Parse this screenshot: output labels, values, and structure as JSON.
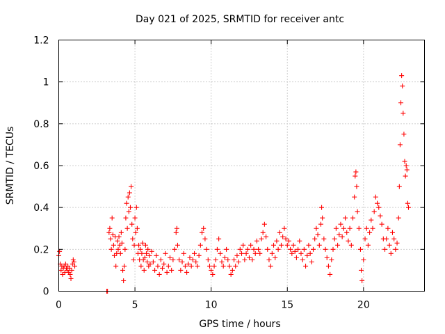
{
  "chart_data": {
    "type": "scatter",
    "title": "Day 021 of 2025, SRMTID for receiver antc",
    "xlabel": "GPS time / hours",
    "ylabel": "SRMTID / TECUs",
    "xlim": [
      0,
      24
    ],
    "ylim": [
      0,
      1.2
    ],
    "xticks": [
      0,
      5,
      10,
      15,
      20
    ],
    "xtick_labels": [
      "0",
      "5",
      "10",
      "15",
      "20"
    ],
    "yticks": [
      0,
      0.2,
      0.4,
      0.6,
      0.8,
      1.0,
      1.2
    ],
    "ytick_labels": [
      "0",
      "0.2",
      "0.4",
      "0.6",
      "0.8",
      "1",
      "1.2"
    ],
    "grid": true,
    "marker": "+",
    "colors": {
      "points": "#ff0000",
      "grid": "#a0a0a0",
      "axis": "#000000"
    },
    "series": [
      {
        "name": "SRMTID",
        "points": [
          [
            0.0,
            0.17
          ],
          [
            0.05,
            0.19
          ],
          [
            0.1,
            0.13
          ],
          [
            0.15,
            0.1
          ],
          [
            0.2,
            0.12
          ],
          [
            0.25,
            0.08
          ],
          [
            0.3,
            0.11
          ],
          [
            0.35,
            0.12
          ],
          [
            0.4,
            0.09
          ],
          [
            0.45,
            0.13
          ],
          [
            0.5,
            0.11
          ],
          [
            0.55,
            0.1
          ],
          [
            0.6,
            0.12
          ],
          [
            0.65,
            0.09
          ],
          [
            0.7,
            0.11
          ],
          [
            0.75,
            0.08
          ],
          [
            0.8,
            0.06
          ],
          [
            0.85,
            0.1
          ],
          [
            0.9,
            0.13
          ],
          [
            0.95,
            0.15
          ],
          [
            1.0,
            0.14
          ],
          [
            1.05,
            0.12
          ],
          [
            3.15,
            0.0
          ],
          [
            3.2,
            0.0
          ],
          [
            3.3,
            0.28
          ],
          [
            3.35,
            0.3
          ],
          [
            3.4,
            0.25
          ],
          [
            3.45,
            0.2
          ],
          [
            3.5,
            0.35
          ],
          [
            3.55,
            0.27
          ],
          [
            3.6,
            0.22
          ],
          [
            3.65,
            0.17
          ],
          [
            3.7,
            0.26
          ],
          [
            3.75,
            0.12
          ],
          [
            3.8,
            0.18
          ],
          [
            3.85,
            0.24
          ],
          [
            3.9,
            0.2
          ],
          [
            3.95,
            0.26
          ],
          [
            4.0,
            0.22
          ],
          [
            4.05,
            0.18
          ],
          [
            4.1,
            0.28
          ],
          [
            4.15,
            0.23
          ],
          [
            4.2,
            0.1
          ],
          [
            4.25,
            0.05
          ],
          [
            4.3,
            0.12
          ],
          [
            4.35,
            0.2
          ],
          [
            4.4,
            0.35
          ],
          [
            4.45,
            0.42
          ],
          [
            4.5,
            0.3
          ],
          [
            4.55,
            0.45
          ],
          [
            4.6,
            0.38
          ],
          [
            4.65,
            0.47
          ],
          [
            4.7,
            0.4
          ],
          [
            4.75,
            0.5
          ],
          [
            4.8,
            0.32
          ],
          [
            4.85,
            0.25
          ],
          [
            4.9,
            0.15
          ],
          [
            4.95,
            0.22
          ],
          [
            5.0,
            0.35
          ],
          [
            5.05,
            0.28
          ],
          [
            5.1,
            0.4
          ],
          [
            5.15,
            0.3
          ],
          [
            5.2,
            0.18
          ],
          [
            5.25,
            0.22
          ],
          [
            5.3,
            0.15
          ],
          [
            5.35,
            0.2
          ],
          [
            5.4,
            0.12
          ],
          [
            5.45,
            0.18
          ],
          [
            5.5,
            0.23
          ],
          [
            5.55,
            0.15
          ],
          [
            5.6,
            0.1
          ],
          [
            5.65,
            0.16
          ],
          [
            5.7,
            0.22
          ],
          [
            5.75,
            0.18
          ],
          [
            5.8,
            0.14
          ],
          [
            5.85,
            0.2
          ],
          [
            5.9,
            0.12
          ],
          [
            5.95,
            0.17
          ],
          [
            6.0,
            0.13
          ],
          [
            6.1,
            0.19
          ],
          [
            6.2,
            0.14
          ],
          [
            6.3,
            0.1
          ],
          [
            6.4,
            0.17
          ],
          [
            6.5,
            0.12
          ],
          [
            6.6,
            0.08
          ],
          [
            6.7,
            0.15
          ],
          [
            6.8,
            0.11
          ],
          [
            6.9,
            0.13
          ],
          [
            7.0,
            0.18
          ],
          [
            7.1,
            0.09
          ],
          [
            7.2,
            0.12
          ],
          [
            7.3,
            0.16
          ],
          [
            7.4,
            0.1
          ],
          [
            7.5,
            0.15
          ],
          [
            7.6,
            0.2
          ],
          [
            7.7,
            0.28
          ],
          [
            7.75,
            0.3
          ],
          [
            7.8,
            0.22
          ],
          [
            7.9,
            0.15
          ],
          [
            8.0,
            0.1
          ],
          [
            8.1,
            0.14
          ],
          [
            8.2,
            0.18
          ],
          [
            8.3,
            0.12
          ],
          [
            8.4,
            0.09
          ],
          [
            8.5,
            0.13
          ],
          [
            8.6,
            0.16
          ],
          [
            8.7,
            0.12
          ],
          [
            8.8,
            0.15
          ],
          [
            8.9,
            0.18
          ],
          [
            9.0,
            0.14
          ],
          [
            9.1,
            0.12
          ],
          [
            9.2,
            0.17
          ],
          [
            9.3,
            0.22
          ],
          [
            9.4,
            0.28
          ],
          [
            9.5,
            0.3
          ],
          [
            9.6,
            0.25
          ],
          [
            9.7,
            0.2
          ],
          [
            9.8,
            0.15
          ],
          [
            9.9,
            0.12
          ],
          [
            10.0,
            0.1
          ],
          [
            10.1,
            0.08
          ],
          [
            10.2,
            0.12
          ],
          [
            10.3,
            0.15
          ],
          [
            10.4,
            0.2
          ],
          [
            10.5,
            0.25
          ],
          [
            10.6,
            0.18
          ],
          [
            10.7,
            0.14
          ],
          [
            10.8,
            0.12
          ],
          [
            10.9,
            0.16
          ],
          [
            11.0,
            0.2
          ],
          [
            11.1,
            0.15
          ],
          [
            11.2,
            0.12
          ],
          [
            11.3,
            0.08
          ],
          [
            11.4,
            0.1
          ],
          [
            11.5,
            0.15
          ],
          [
            11.6,
            0.12
          ],
          [
            11.7,
            0.17
          ],
          [
            11.8,
            0.14
          ],
          [
            11.9,
            0.2
          ],
          [
            12.0,
            0.18
          ],
          [
            12.1,
            0.22
          ],
          [
            12.2,
            0.15
          ],
          [
            12.3,
            0.18
          ],
          [
            12.4,
            0.2
          ],
          [
            12.5,
            0.16
          ],
          [
            12.6,
            0.22
          ],
          [
            12.7,
            0.15
          ],
          [
            12.8,
            0.2
          ],
          [
            12.9,
            0.18
          ],
          [
            13.0,
            0.24
          ],
          [
            13.1,
            0.2
          ],
          [
            13.2,
            0.18
          ],
          [
            13.3,
            0.25
          ],
          [
            13.4,
            0.28
          ],
          [
            13.5,
            0.32
          ],
          [
            13.6,
            0.26
          ],
          [
            13.7,
            0.2
          ],
          [
            13.8,
            0.15
          ],
          [
            13.9,
            0.12
          ],
          [
            14.0,
            0.18
          ],
          [
            14.1,
            0.22
          ],
          [
            14.2,
            0.16
          ],
          [
            14.3,
            0.24
          ],
          [
            14.4,
            0.2
          ],
          [
            14.5,
            0.28
          ],
          [
            14.6,
            0.22
          ],
          [
            14.7,
            0.26
          ],
          [
            14.8,
            0.3
          ],
          [
            14.9,
            0.25
          ],
          [
            15.0,
            0.22
          ],
          [
            15.1,
            0.24
          ],
          [
            15.2,
            0.2
          ],
          [
            15.3,
            0.18
          ],
          [
            15.4,
            0.22
          ],
          [
            15.5,
            0.19
          ],
          [
            15.6,
            0.16
          ],
          [
            15.7,
            0.2
          ],
          [
            15.8,
            0.24
          ],
          [
            15.9,
            0.18
          ],
          [
            16.0,
            0.15
          ],
          [
            16.1,
            0.2
          ],
          [
            16.2,
            0.12
          ],
          [
            16.3,
            0.17
          ],
          [
            16.4,
            0.22
          ],
          [
            16.5,
            0.18
          ],
          [
            16.6,
            0.14
          ],
          [
            16.7,
            0.2
          ],
          [
            16.8,
            0.25
          ],
          [
            16.9,
            0.3
          ],
          [
            17.0,
            0.27
          ],
          [
            17.1,
            0.22
          ],
          [
            17.2,
            0.32
          ],
          [
            17.25,
            0.4
          ],
          [
            17.3,
            0.35
          ],
          [
            17.4,
            0.25
          ],
          [
            17.5,
            0.2
          ],
          [
            17.6,
            0.16
          ],
          [
            17.7,
            0.12
          ],
          [
            17.8,
            0.08
          ],
          [
            17.9,
            0.15
          ],
          [
            18.0,
            0.2
          ],
          [
            18.1,
            0.25
          ],
          [
            18.2,
            0.3
          ],
          [
            18.3,
            0.22
          ],
          [
            18.4,
            0.27
          ],
          [
            18.5,
            0.32
          ],
          [
            18.6,
            0.26
          ],
          [
            18.7,
            0.3
          ],
          [
            18.8,
            0.35
          ],
          [
            18.9,
            0.28
          ],
          [
            19.0,
            0.24
          ],
          [
            19.1,
            0.3
          ],
          [
            19.2,
            0.22
          ],
          [
            19.3,
            0.35
          ],
          [
            19.4,
            0.45
          ],
          [
            19.45,
            0.55
          ],
          [
            19.5,
            0.57
          ],
          [
            19.55,
            0.5
          ],
          [
            19.6,
            0.38
          ],
          [
            19.7,
            0.3
          ],
          [
            19.8,
            0.2
          ],
          [
            19.85,
            0.1
          ],
          [
            19.9,
            0.05
          ],
          [
            20.0,
            0.15
          ],
          [
            20.1,
            0.25
          ],
          [
            20.2,
            0.3
          ],
          [
            20.3,
            0.22
          ],
          [
            20.4,
            0.28
          ],
          [
            20.5,
            0.34
          ],
          [
            20.6,
            0.3
          ],
          [
            20.7,
            0.38
          ],
          [
            20.8,
            0.45
          ],
          [
            20.9,
            0.42
          ],
          [
            21.0,
            0.4
          ],
          [
            21.1,
            0.36
          ],
          [
            21.2,
            0.32
          ],
          [
            21.3,
            0.25
          ],
          [
            21.4,
            0.2
          ],
          [
            21.5,
            0.25
          ],
          [
            21.6,
            0.3
          ],
          [
            21.7,
            0.22
          ],
          [
            21.8,
            0.18
          ],
          [
            21.9,
            0.28
          ],
          [
            22.0,
            0.25
          ],
          [
            22.1,
            0.2
          ],
          [
            22.2,
            0.23
          ],
          [
            22.3,
            0.35
          ],
          [
            22.35,
            0.5
          ],
          [
            22.4,
            0.7
          ],
          [
            22.45,
            0.9
          ],
          [
            22.5,
            1.03
          ],
          [
            22.55,
            0.98
          ],
          [
            22.6,
            0.85
          ],
          [
            22.65,
            0.75
          ],
          [
            22.7,
            0.62
          ],
          [
            22.75,
            0.55
          ],
          [
            22.8,
            0.6
          ],
          [
            22.85,
            0.58
          ],
          [
            22.9,
            0.42
          ],
          [
            22.95,
            0.4
          ]
        ]
      }
    ]
  }
}
